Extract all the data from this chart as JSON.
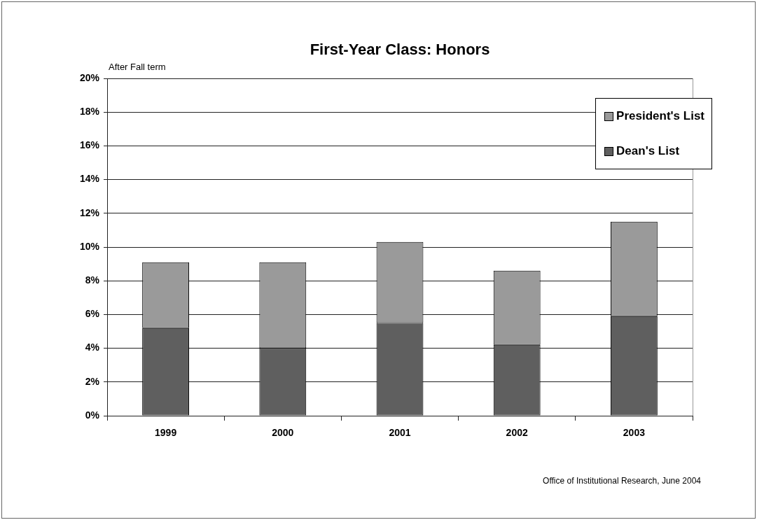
{
  "chart_data": {
    "type": "bar",
    "title": "First-Year Class: Honors",
    "ylabel": "After Fall term",
    "categories": [
      "1999",
      "2000",
      "2001",
      "2002",
      "2003"
    ],
    "series": [
      {
        "name": "Dean's List",
        "color": "#5f5f5f",
        "values": [
          5.2,
          4.0,
          5.5,
          4.2,
          5.9
        ]
      },
      {
        "name": "President's List",
        "color": "#9a9a9a",
        "values": [
          3.9,
          5.1,
          4.8,
          4.4,
          5.6
        ]
      }
    ],
    "stacked": true,
    "ylim": [
      0,
      20
    ],
    "yticks": [
      {
        "value": 0,
        "label": "0%"
      },
      {
        "value": 2,
        "label": "2%"
      },
      {
        "value": 4,
        "label": "4%"
      },
      {
        "value": 6,
        "label": "6%"
      },
      {
        "value": 8,
        "label": "8%"
      },
      {
        "value": 10,
        "label": "10%"
      },
      {
        "value": 12,
        "label": "12%"
      },
      {
        "value": 14,
        "label": "14%"
      },
      {
        "value": 16,
        "label": "16%"
      },
      {
        "value": 18,
        "label": "18%"
      },
      {
        "value": 20,
        "label": "20%"
      }
    ],
    "grid": "y",
    "legend": "top right",
    "annotations": [
      "Office of Institutional Research, June 2004"
    ]
  }
}
